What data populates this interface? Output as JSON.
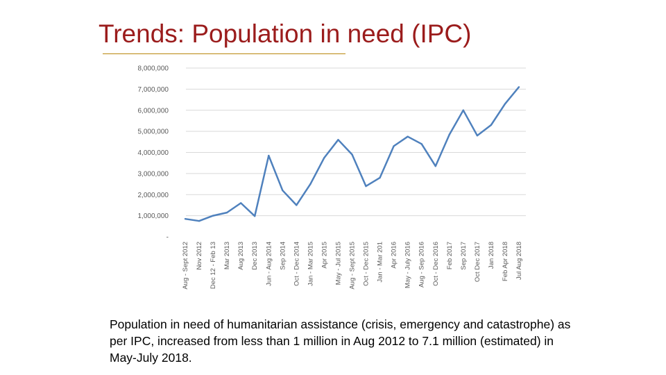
{
  "slide": {
    "title": "Trends: Population in need (IPC)",
    "caption": "Population in need of humanitarian assistance (crisis, emergency and catastrophe) as per IPC, increased from less than 1 million in Aug 2012 to 7.1 million (estimated) in May-July 2018."
  },
  "colors": {
    "title": "#9b1c1c",
    "title_rule": "#b8860b",
    "line": "#4f81bd",
    "gridline": "#d9d9d9",
    "tick_text": "#595959"
  },
  "chart_data": {
    "type": "line",
    "title": "",
    "xlabel": "",
    "ylabel": "",
    "ylim": [
      0,
      8000000
    ],
    "y_ticks": [
      0,
      1000000,
      2000000,
      3000000,
      4000000,
      5000000,
      6000000,
      7000000,
      8000000
    ],
    "y_tick_labels": [
      "-",
      "1,000,000",
      "2,000,000",
      "3,000,000",
      "4,000,000",
      "5,000,000",
      "6,000,000",
      "7,000,000",
      "8,000,000"
    ],
    "grid": true,
    "legend": "none",
    "categories": [
      "Aug - Sept 2012",
      "Nov 2012",
      "Dec 12 - Feb 13",
      "Mar 2013",
      "Aug 2013",
      "Dec 2013",
      "Jun - Aug 2014",
      "Sep 2014",
      "Oct - Dec 2014",
      "Jan - Mar 2015",
      "Apr 2015",
      "May - Jul 2015",
      "Aug - Sept 2015",
      "Oct - Dec 2015",
      "Jan - Mar 201",
      "Apr 2016",
      "May - July 2016",
      "Aug - Sep 2016",
      "Oct - Dec 2016",
      "Feb 2017",
      "Sep 2017",
      "Oct Dec 2017",
      "Jan 2018",
      "Feb Apr 2018",
      "Jul Aug 2018"
    ],
    "series": [
      {
        "values": [
          850000,
          750000,
          1000000,
          1150000,
          1600000,
          980000,
          3850000,
          2200000,
          1500000,
          2500000,
          3750000,
          4600000,
          3900000,
          2400000,
          2800000,
          4300000,
          4750000,
          4400000,
          3350000,
          4850000,
          6000000,
          4800000,
          5300000,
          6300000,
          7100000
        ]
      }
    ]
  }
}
